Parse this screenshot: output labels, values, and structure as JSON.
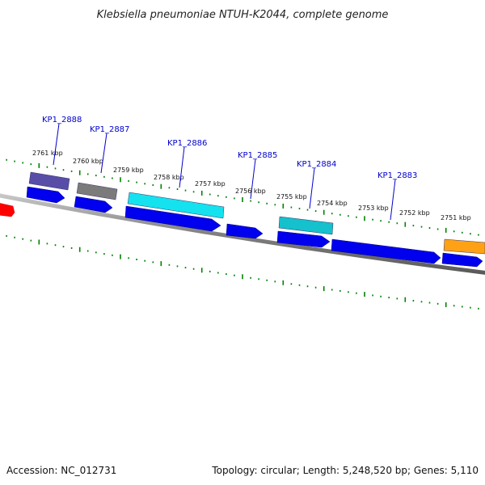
{
  "title": "Klebsiella pneumoniae NTUH-K2044, complete genome",
  "accession": "Accession: NC_012731",
  "topology": "Topology: circular; Length: 5,248,520 bp; Genes: 5,110",
  "colors": {
    "backbone": "#808080",
    "cds": "#0000ee",
    "label": "#0000cc",
    "tick": "#008000",
    "rna": "#ff0000"
  },
  "scale_labels": [
    "2761 kbp",
    "2760 kbp",
    "2759 kbp",
    "2758 kbp",
    "2757 kbp",
    "2756 kbp",
    "2755 kbp",
    "2754 kbp",
    "2753 kbp",
    "2752 kbp",
    "2751 kbp"
  ],
  "gene_labels": [
    "KP1_2888",
    "KP1_2887",
    "KP1_2886",
    "KP1_2885",
    "KP1_2884",
    "KP1_2883"
  ],
  "feature_colors": [
    "#4a3fa0",
    "#707070",
    "#00e0ee",
    "#00bcc8",
    "#ff9900"
  ]
}
